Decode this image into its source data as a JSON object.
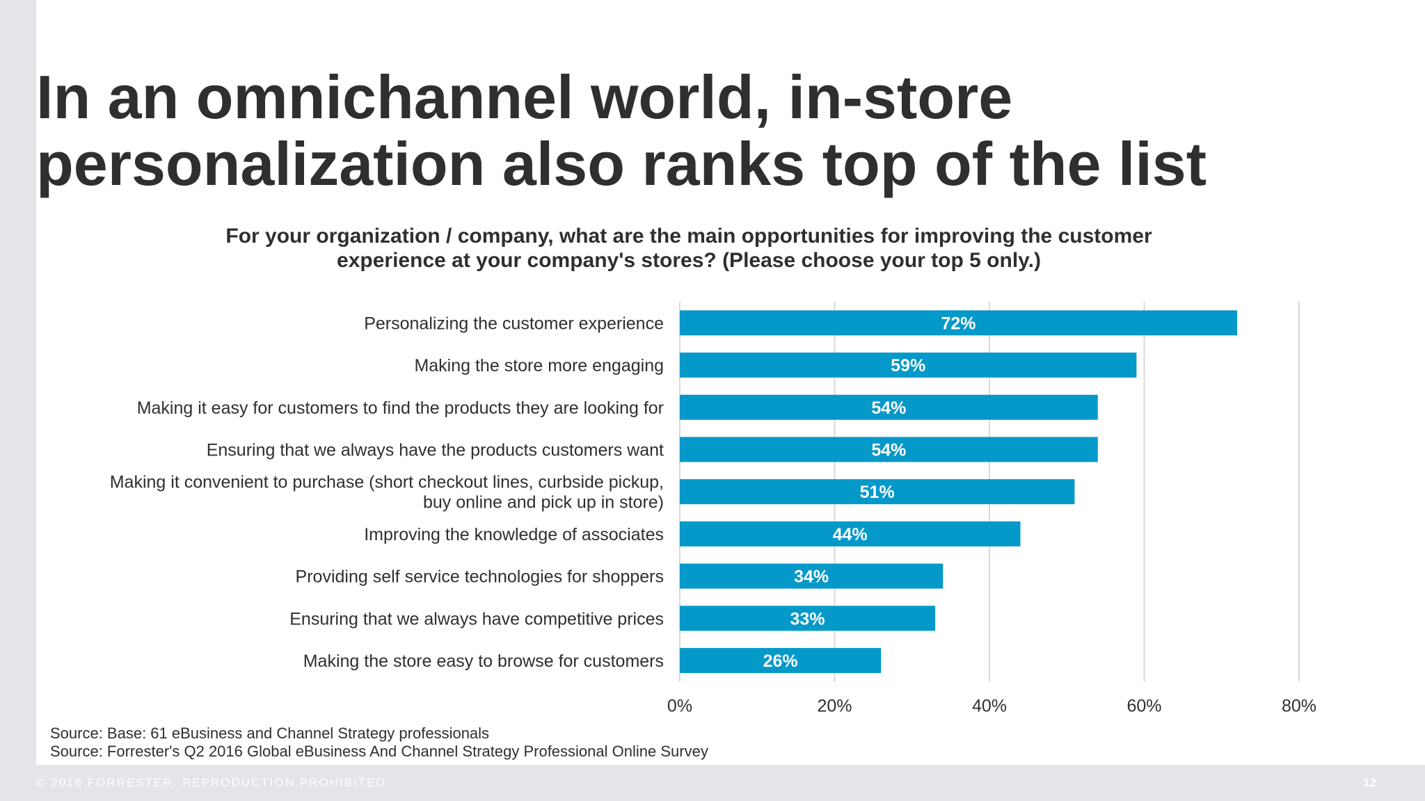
{
  "slide": {
    "title_line1": "In an omnichannel world, in-store",
    "title_line2": "personalization also ranks top of the list",
    "question_line1": "For your organization / company, what are the main opportunities for improving the customer",
    "question_line2": "experience at your company's stores? (Please choose your top 5 only.)",
    "source_1": "Source: Base: 61 eBusiness and Channel Strategy professionals",
    "source_2": "Source: Forrester's Q2 2016 Global eBusiness And Channel Strategy Professional Online Survey",
    "footer_copyright": "© 2016 FORRESTER. REPRODUCTION PROHIBITED.",
    "page_number": "12"
  },
  "colors": {
    "bar": "#0599c9",
    "grid": "#d9d9d9",
    "text": "#2f2f31"
  },
  "chart_data": {
    "type": "bar",
    "orientation": "horizontal",
    "categories": [
      [
        "Personalizing the customer experience"
      ],
      [
        "Making the store more engaging"
      ],
      [
        "Making it easy for customers to find the products they are looking for"
      ],
      [
        "Ensuring that we always have the products customers want"
      ],
      [
        "Making it convenient to purchase (short checkout lines, curbside pickup,",
        "buy online and pick up in store)"
      ],
      [
        "Improving the knowledge of associates"
      ],
      [
        "Providing self service technologies for shoppers"
      ],
      [
        "Ensuring that we always have competitive prices"
      ],
      [
        "Making the store easy to browse for customers"
      ]
    ],
    "values": [
      72,
      59,
      54,
      54,
      51,
      44,
      34,
      33,
      26
    ],
    "value_labels": [
      "72%",
      "59%",
      "54%",
      "54%",
      "51%",
      "44%",
      "34%",
      "33%",
      "26%"
    ],
    "xlim": [
      0,
      80
    ],
    "xticks": [
      0,
      20,
      40,
      60,
      80
    ],
    "xtick_labels": [
      "0%",
      "20%",
      "40%",
      "60%",
      "80%"
    ],
    "grid": true
  }
}
